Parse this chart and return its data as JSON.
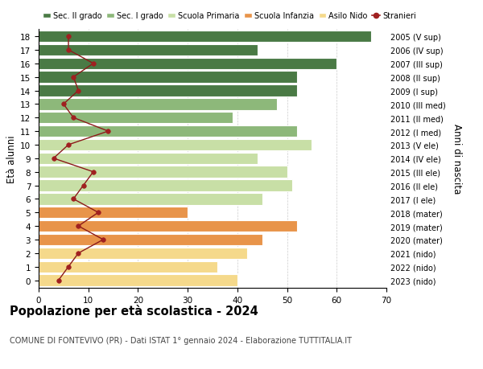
{
  "ages": [
    0,
    1,
    2,
    3,
    4,
    5,
    6,
    7,
    8,
    9,
    10,
    11,
    12,
    13,
    14,
    15,
    16,
    17,
    18
  ],
  "bar_values": [
    40,
    36,
    42,
    45,
    52,
    30,
    45,
    51,
    50,
    44,
    55,
    52,
    39,
    48,
    52,
    52,
    60,
    44,
    67
  ],
  "bar_colors": [
    "#f5d98b",
    "#f5d98b",
    "#f5d98b",
    "#e8944a",
    "#e8944a",
    "#e8944a",
    "#c8dfa6",
    "#c8dfa6",
    "#c8dfa6",
    "#c8dfa6",
    "#c8dfa6",
    "#8db87a",
    "#8db87a",
    "#8db87a",
    "#4a7a45",
    "#4a7a45",
    "#4a7a45",
    "#4a7a45",
    "#4a7a45"
  ],
  "stranieri_values": [
    4,
    6,
    8,
    13,
    8,
    12,
    7,
    9,
    11,
    3,
    6,
    14,
    7,
    5,
    8,
    7,
    11,
    6,
    6
  ],
  "right_labels": [
    "2023 (nido)",
    "2022 (nido)",
    "2021 (nido)",
    "2020 (mater)",
    "2019 (mater)",
    "2018 (mater)",
    "2017 (I ele)",
    "2016 (II ele)",
    "2015 (III ele)",
    "2014 (IV ele)",
    "2013 (V ele)",
    "2012 (I med)",
    "2011 (II med)",
    "2010 (III med)",
    "2009 (I sup)",
    "2008 (II sup)",
    "2007 (III sup)",
    "2006 (IV sup)",
    "2005 (V sup)"
  ],
  "legend_labels": [
    "Sec. II grado",
    "Sec. I grado",
    "Scuola Primaria",
    "Scuola Infanzia",
    "Asilo Nido",
    "Stranieri"
  ],
  "legend_colors": [
    "#4a7a45",
    "#8db87a",
    "#c8dfa6",
    "#e8944a",
    "#f5d98b",
    "#a02020"
  ],
  "title": "Popolazione per età scolastica - 2024",
  "subtitle": "COMUNE DI FONTEVIVO (PR) - Dati ISTAT 1° gennaio 2024 - Elaborazione TUTTITALIA.IT",
  "ylabel_left": "Età alunni",
  "ylabel_right": "Anni di nascita",
  "xlim": [
    0,
    70
  ],
  "xticks": [
    0,
    10,
    20,
    30,
    40,
    50,
    60,
    70
  ],
  "bg_color": "#ffffff",
  "bar_edge_color": "#ffffff",
  "stranieri_line_color": "#8b1a1a",
  "stranieri_marker_color": "#a02020",
  "grid_color": "#cccccc"
}
